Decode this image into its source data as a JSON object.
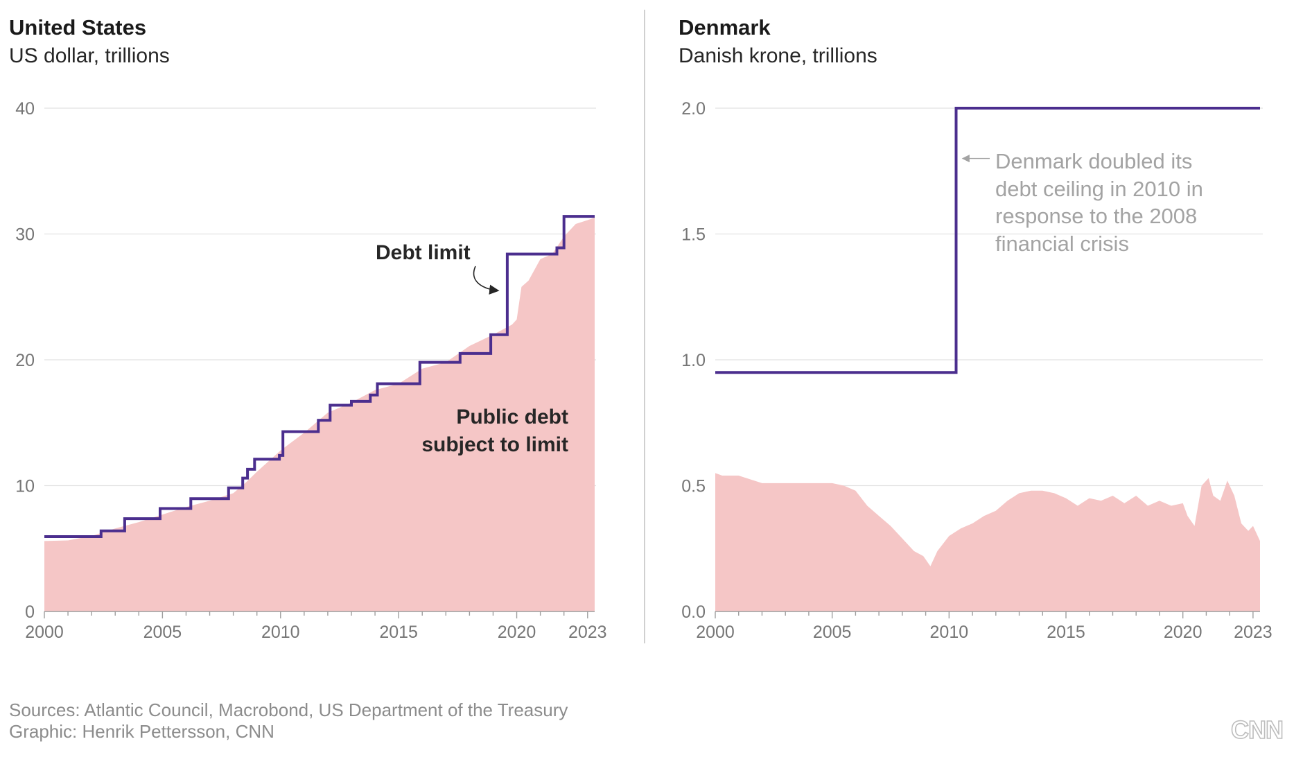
{
  "colors": {
    "debt_area": "#f5c6c6",
    "limit_line": "#4b2e8e",
    "annotation_dark": "#262626",
    "annotation_light": "#a3a3a3"
  },
  "footer": {
    "sources": "Sources: Atlantic Council, Macrobond, US Department of the Treasury",
    "graphic": "Graphic: Henrik Pettersson, CNN",
    "logo": "CNN"
  },
  "chart_data": [
    {
      "type": "area",
      "title": "United States",
      "subtitle": "US dollar, trillions",
      "xlabel": "",
      "ylabel": "",
      "xlim": [
        2000,
        2023.3
      ],
      "ylim": [
        0,
        40
      ],
      "grid": true,
      "x_ticks": [
        2000,
        2005,
        2010,
        2015,
        2020,
        2023
      ],
      "y_ticks": [
        0,
        10,
        20,
        30,
        40
      ],
      "y_tick_labels": [
        "0",
        "10",
        "20",
        "30",
        "40"
      ],
      "annotations": [
        {
          "text": "Debt limit",
          "target": [
            2019.4,
            25.5
          ]
        },
        {
          "text_lines": [
            "Public debt",
            "subject to limit"
          ]
        }
      ],
      "series": [
        {
          "name": "Debt limit",
          "kind": "step",
          "x": [
            2000,
            2002.4,
            2003.4,
            2004.9,
            2006.2,
            2007.8,
            2008.4,
            2008.6,
            2008.9,
            2009.1,
            2009.95,
            2010.1,
            2011.6,
            2011.8,
            2012.1,
            2013.0,
            2013.8,
            2014.1,
            2015.9,
            2017.6,
            2017.9,
            2018.9,
            2019.6,
            2021.7,
            2021.9,
            2022.0,
            2023.3
          ],
          "values": [
            5.95,
            6.4,
            7.38,
            8.18,
            8.97,
            9.82,
            10.6,
            11.3,
            12.1,
            12.1,
            12.4,
            14.29,
            15.19,
            15.19,
            16.39,
            16.7,
            17.2,
            18.1,
            19.8,
            20.5,
            20.5,
            22.0,
            28.4,
            28.9,
            28.9,
            31.4,
            31.4
          ]
        },
        {
          "name": "Public debt subject to limit",
          "kind": "area",
          "x": [
            2000,
            2001,
            2002,
            2003,
            2004,
            2005,
            2006,
            2007,
            2008,
            2008.5,
            2009,
            2010,
            2011,
            2012,
            2013,
            2014,
            2015,
            2016,
            2017,
            2018,
            2019,
            2019.8,
            2020.0,
            2020.2,
            2020.5,
            2021,
            2021.5,
            2022,
            2022.5,
            2023,
            2023.3
          ],
          "values": [
            5.6,
            5.65,
            6.0,
            6.6,
            7.1,
            7.7,
            8.3,
            8.8,
            9.4,
            10.2,
            11.1,
            12.8,
            14.2,
            15.8,
            16.6,
            17.6,
            18.1,
            19.3,
            19.8,
            21.1,
            22.0,
            22.8,
            23.2,
            25.8,
            26.3,
            28.0,
            28.4,
            29.8,
            30.8,
            31.1,
            31.3
          ]
        }
      ]
    },
    {
      "type": "area",
      "title": "Denmark",
      "subtitle": "Danish krone, trillions",
      "xlabel": "",
      "ylabel": "",
      "xlim": [
        2000,
        2023.3
      ],
      "ylim": [
        0,
        2.0
      ],
      "grid": true,
      "x_ticks": [
        2000,
        2005,
        2010,
        2015,
        2020,
        2023
      ],
      "y_ticks": [
        0,
        0.5,
        1.0,
        1.5,
        2.0
      ],
      "y_tick_labels": [
        "0.0",
        "0.5",
        "1.0",
        "1.5",
        "2.0"
      ],
      "annotations": [
        {
          "text_lines": [
            "Denmark doubled its",
            "debt ceiling in 2010 in",
            "response to the 2008",
            "financial crisis"
          ],
          "target": [
            2010.4,
            1.8
          ]
        }
      ],
      "series": [
        {
          "name": "Debt limit",
          "kind": "step",
          "x": [
            2000,
            2010.3,
            2023.3
          ],
          "values": [
            0.95,
            2.0,
            2.0
          ]
        },
        {
          "name": "Public debt",
          "kind": "area",
          "x": [
            2000,
            2000.3,
            2001,
            2002,
            2003,
            2004,
            2005,
            2005.5,
            2006,
            2006.5,
            2007,
            2007.5,
            2008,
            2008.5,
            2008.9,
            2009.2,
            2009.5,
            2010,
            2010.5,
            2011,
            2011.5,
            2012,
            2012.5,
            2013,
            2013.5,
            2014,
            2014.5,
            2015,
            2015.5,
            2016,
            2016.5,
            2017,
            2017.5,
            2018,
            2018.5,
            2019,
            2019.5,
            2020,
            2020.2,
            2020.5,
            2020.8,
            2021.1,
            2021.3,
            2021.6,
            2021.9,
            2022.2,
            2022.5,
            2022.8,
            2023,
            2023.3
          ],
          "values": [
            0.55,
            0.54,
            0.54,
            0.51,
            0.51,
            0.51,
            0.51,
            0.5,
            0.48,
            0.42,
            0.38,
            0.34,
            0.29,
            0.24,
            0.22,
            0.18,
            0.24,
            0.3,
            0.33,
            0.35,
            0.38,
            0.4,
            0.44,
            0.47,
            0.48,
            0.48,
            0.47,
            0.45,
            0.42,
            0.45,
            0.44,
            0.46,
            0.43,
            0.46,
            0.42,
            0.44,
            0.42,
            0.43,
            0.38,
            0.34,
            0.5,
            0.53,
            0.46,
            0.44,
            0.52,
            0.46,
            0.35,
            0.32,
            0.34,
            0.28
          ]
        }
      ]
    }
  ]
}
